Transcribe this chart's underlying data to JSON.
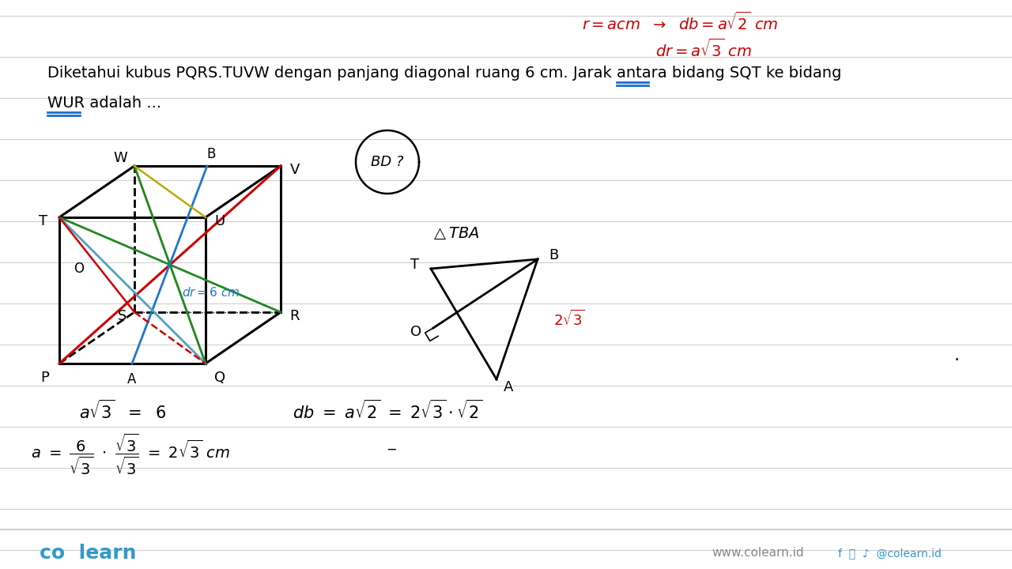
{
  "bg_color": "#ffffff",
  "ruled_line_color": "#d0d0d0",
  "red_color": "#cc0000",
  "blue_color": "#1a6fcc",
  "green_color": "#228822",
  "teal_color": "#008888",
  "yellow_color": "#bbaa00",
  "orange_color": "#dd6600",
  "black_color": "#111111",
  "colearn_color": "#3399cc",
  "formula_top1": "r = acm  →  db = a√2 cm",
  "formula_top2": "dr = a√3 cm",
  "problem_text1": "Diketahui kubus PQRS.TUVW dengan panjang diagonal ruang 6 cm. Jarak antara bidang SQT ke bidang",
  "problem_text2": "WUR adalah ...",
  "circle_text": "BD ?",
  "triangle_label": "△TBA",
  "formula_bot1": "a√3  =  6",
  "formula_bot2": "db = a√2 = 2√3 · √2",
  "formula_bot3_a": "a  =  ",
  "formula_bot3_b": "6",
  "formula_bot3_c": "√3",
  "formula_bot3_d": " · ",
  "formula_bot3_e": "√3",
  "formula_bot3_f": "√3",
  "formula_bot3_g": " = 2√3 cm"
}
